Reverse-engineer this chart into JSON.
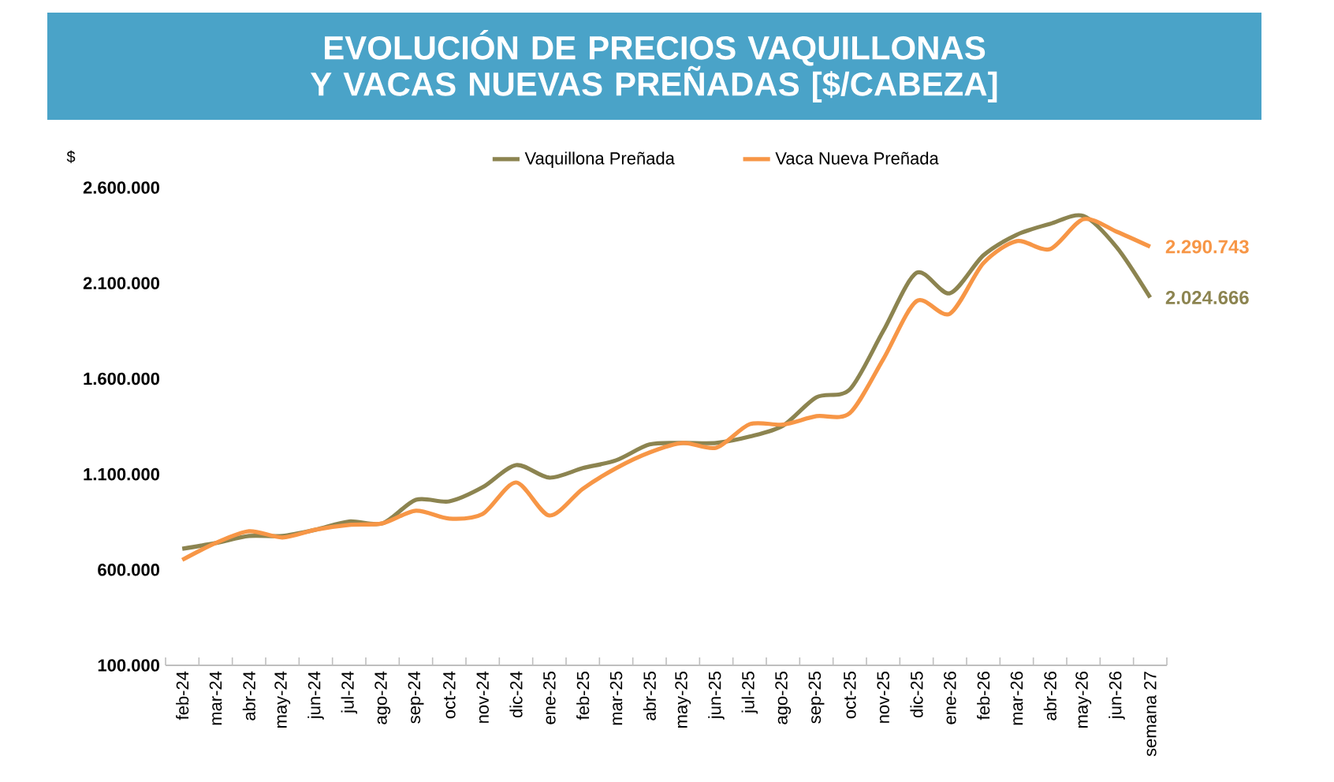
{
  "chart_data": {
    "type": "line",
    "title": "EVOLUCIÓN DE PRECIOS VAQUILLONAS Y VACAS NUEVAS PREÑADAS [$/CABEZA]",
    "ylabel": "$",
    "categories": [
      "feb-24",
      "mar-24",
      "abr-24",
      "may-24",
      "jun-24",
      "jul-24",
      "ago-24",
      "sep-24",
      "oct-24",
      "nov-24",
      "dic-24",
      "ene-25",
      "feb-25",
      "mar-25",
      "abr-25",
      "may-25",
      "jun-25",
      "jul-25",
      "ago-25",
      "sep-25",
      "oct-25",
      "nov-25",
      "dic-25",
      "ene-26",
      "feb-26",
      "mar-26",
      "abr-26",
      "may-26",
      "jun-26",
      "semana 27"
    ],
    "series": [
      {
        "name": "Vaquillona Preñada",
        "color": "#8c8450",
        "values": [
          710000,
          740000,
          777000,
          777000,
          810000,
          853000,
          843000,
          966000,
          958000,
          1032000,
          1148000,
          1082000,
          1132000,
          1173000,
          1256000,
          1264000,
          1264000,
          1297000,
          1354000,
          1503000,
          1544000,
          1849000,
          2154000,
          2047000,
          2245000,
          2353000,
          2410000,
          2452000,
          2287000,
          2024666
        ],
        "value_labels": [
          null,
          null,
          null,
          null,
          null,
          null,
          null,
          null,
          null,
          null,
          null,
          null,
          null,
          null,
          null,
          null,
          null,
          null,
          null,
          null,
          null,
          null,
          null,
          null,
          null,
          null,
          null,
          null,
          null,
          "2.024.666"
        ]
      },
      {
        "name": "Vaca Nueva Preñada",
        "color": "#f79646",
        "values": [
          652000,
          740000,
          802000,
          769000,
          810000,
          835000,
          843000,
          909000,
          868000,
          892000,
          1057000,
          884000,
          1024000,
          1132000,
          1214000,
          1264000,
          1239000,
          1362000,
          1360000,
          1404000,
          1420000,
          1701000,
          2006000,
          1940000,
          2204000,
          2320000,
          2278000,
          2435000,
          2369000,
          2290743
        ],
        "value_labels": [
          null,
          null,
          null,
          null,
          null,
          null,
          null,
          null,
          null,
          null,
          null,
          null,
          null,
          null,
          null,
          null,
          null,
          null,
          null,
          null,
          null,
          null,
          null,
          null,
          null,
          null,
          null,
          null,
          null,
          "2.290.743"
        ]
      }
    ],
    "ylim": [
      100000,
      2600000
    ],
    "yticks": [
      {
        "value": 100000,
        "label": "100.000"
      },
      {
        "value": 600000,
        "label": "600.000"
      },
      {
        "value": 1100000,
        "label": "1.100.000"
      },
      {
        "value": 1600000,
        "label": "1.600.000"
      },
      {
        "value": 2100000,
        "label": "2.100.000"
      },
      {
        "value": 2600000,
        "label": "2.600.000"
      }
    ],
    "grid": false,
    "legend": "top",
    "marker": "none",
    "line_style": "solid"
  }
}
